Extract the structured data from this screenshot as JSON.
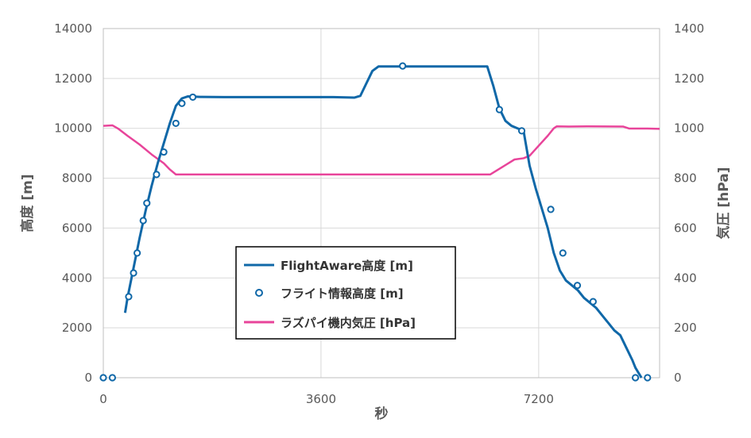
{
  "chart_data": {
    "type": "line",
    "xlabel": "秒",
    "ylabel_left": "高度 [m]",
    "ylabel_right": "気圧 [hPa]",
    "xlim": [
      0,
      9200
    ],
    "xticks": [
      0,
      3600,
      7200
    ],
    "ylim_left": [
      0,
      14000
    ],
    "yticks_left": [
      0,
      2000,
      4000,
      6000,
      8000,
      10000,
      12000,
      14000
    ],
    "ylim_right": [
      0,
      1400
    ],
    "yticks_right": [
      0,
      200,
      400,
      600,
      800,
      1000,
      1200,
      1400
    ],
    "grid": true,
    "legend_position": "center",
    "colors": {
      "altitude": "#1068a8",
      "pressure": "#e8449a",
      "grid": "#d9d9d9",
      "axis_text": "#595959"
    },
    "series": [
      {
        "name": "FlightAware高度 [m]",
        "kind": "line",
        "axis": "left",
        "x": [
          360,
          400,
          450,
          500,
          600,
          700,
          800,
          900,
          1000,
          1100,
          1200,
          1300,
          1400,
          1600,
          2000,
          2600,
          3200,
          3800,
          4150,
          4250,
          4350,
          4450,
          4550,
          5000,
          5500,
          6000,
          6350,
          6450,
          6550,
          6650,
          6750,
          6850,
          6950,
          7050,
          7150,
          7250,
          7350,
          7450,
          7550,
          7650,
          7750,
          7850,
          7950,
          8050,
          8150,
          8250,
          8350,
          8450,
          8550,
          8650,
          8750,
          8800,
          8850,
          8900
        ],
        "y": [
          2600,
          3200,
          3800,
          4400,
          5600,
          6700,
          7700,
          8600,
          9400,
          10200,
          10900,
          11200,
          11280,
          11260,
          11250,
          11250,
          11250,
          11250,
          11230,
          11300,
          11800,
          12300,
          12480,
          12480,
          12480,
          12480,
          12480,
          11700,
          10800,
          10300,
          10100,
          10000,
          9900,
          8500,
          7600,
          6800,
          6000,
          5000,
          4300,
          3900,
          3700,
          3500,
          3200,
          3000,
          2800,
          2500,
          2200,
          1900,
          1700,
          1200,
          700,
          400,
          200,
          0
        ]
      },
      {
        "name": "フライト情報高度 [m]",
        "kind": "scatter",
        "axis": "left",
        "x": [
          0,
          150,
          420,
          500,
          560,
          660,
          720,
          880,
          1000,
          1200,
          1300,
          1480,
          4950,
          6550,
          6920,
          7400,
          7600,
          7840,
          8100,
          8800,
          9000
        ],
        "y": [
          0,
          0,
          3250,
          4200,
          5000,
          6300,
          7000,
          8150,
          9050,
          10200,
          11000,
          11250,
          12500,
          10750,
          9900,
          6750,
          5000,
          3700,
          3050,
          0,
          0
        ]
      },
      {
        "name": "ラズパイ機内気圧 [hPa]",
        "kind": "line",
        "axis": "right",
        "x": [
          0,
          150,
          250,
          400,
          600,
          800,
          1000,
          1100,
          1200,
          2000,
          3000,
          4000,
          5000,
          6000,
          6400,
          6600,
          6800,
          6950,
          7050,
          7200,
          7350,
          7450,
          7500,
          7700,
          8000,
          8600,
          8700,
          9000,
          9200
        ],
        "y": [
          1010,
          1012,
          998,
          970,
          935,
          895,
          860,
          835,
          815,
          815,
          815,
          815,
          815,
          815,
          815,
          845,
          875,
          880,
          890,
          930,
          970,
          1000,
          1008,
          1007,
          1008,
          1007,
          999,
          999,
          998
        ]
      }
    ]
  }
}
